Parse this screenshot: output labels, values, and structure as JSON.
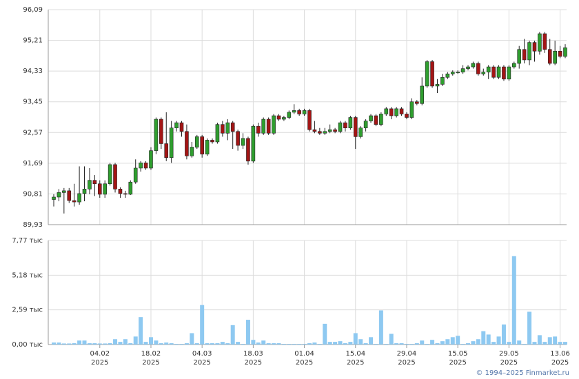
{
  "chart_data": [
    {
      "type": "candlestick",
      "open": [
        90.65,
        90.72,
        90.85,
        90.9,
        90.62,
        90.58,
        90.82,
        90.95,
        91.2,
        91.1,
        90.8,
        91.1,
        91.65,
        90.95,
        90.82,
        90.8,
        91.15,
        91.55,
        91.7,
        91.55,
        92.05,
        92.95,
        92.25,
        91.85,
        92.7,
        92.85,
        92.6,
        91.9,
        92.15,
        92.45,
        91.95,
        92.35,
        92.3,
        92.8,
        92.55,
        92.85,
        92.6,
        92.2,
        92.4,
        91.75,
        92.75,
        92.55,
        92.95,
        92.55,
        93.05,
        92.95,
        93.0,
        93.15,
        93.2,
        93.1,
        93.2,
        92.65,
        92.6,
        92.55,
        92.6,
        92.65,
        92.6,
        92.85,
        92.7,
        93.0,
        92.45,
        92.7,
        92.9,
        93.05,
        92.8,
        93.1,
        93.25,
        93.05,
        93.25,
        93.1,
        93.0,
        93.45,
        93.4,
        93.9,
        94.6,
        93.9,
        93.95,
        94.15,
        94.25,
        94.3,
        94.3,
        94.4,
        94.45,
        94.55,
        94.25,
        94.3,
        94.45,
        94.15,
        94.45,
        94.1,
        94.45,
        94.55,
        94.95,
        94.65,
        95.15,
        94.9,
        95.4,
        94.95,
        94.55,
        94.9,
        94.75
      ],
      "high": [
        90.8,
        90.95,
        90.98,
        90.98,
        91.1,
        91.6,
        91.6,
        91.55,
        91.35,
        91.2,
        91.2,
        91.7,
        91.7,
        91.0,
        90.9,
        91.2,
        91.8,
        91.75,
        91.75,
        92.15,
        93.0,
        93.0,
        93.15,
        92.9,
        92.9,
        92.9,
        92.8,
        92.3,
        92.5,
        92.5,
        92.4,
        92.4,
        92.85,
        92.9,
        92.95,
        92.9,
        92.65,
        92.55,
        92.45,
        92.8,
        92.85,
        93.0,
        93.0,
        93.1,
        93.1,
        93.05,
        93.2,
        93.38,
        93.25,
        93.25,
        93.25,
        92.9,
        92.7,
        92.7,
        92.8,
        92.7,
        92.9,
        92.9,
        93.05,
        93.05,
        92.75,
        92.95,
        93.1,
        93.1,
        93.15,
        93.3,
        93.3,
        93.3,
        93.3,
        93.15,
        93.55,
        93.5,
        94.15,
        94.65,
        94.65,
        94.1,
        94.25,
        94.3,
        94.35,
        94.35,
        94.5,
        94.5,
        94.6,
        94.6,
        94.4,
        94.5,
        94.5,
        94.5,
        94.5,
        94.5,
        94.6,
        95.05,
        95.25,
        95.2,
        95.2,
        95.45,
        95.45,
        95.25,
        95.2,
        95.05,
        95.1
      ],
      "low": [
        90.45,
        90.6,
        90.25,
        90.55,
        90.45,
        90.5,
        90.6,
        90.8,
        90.75,
        90.7,
        90.7,
        91.05,
        90.85,
        90.7,
        90.7,
        90.78,
        91.1,
        91.45,
        91.5,
        91.5,
        91.95,
        92.1,
        91.75,
        91.7,
        92.6,
        92.45,
        91.8,
        91.85,
        92.1,
        91.85,
        91.9,
        92.25,
        92.25,
        92.45,
        92.35,
        92.1,
        92.05,
        92.1,
        91.65,
        91.7,
        92.45,
        92.5,
        92.5,
        92.5,
        92.9,
        92.9,
        92.95,
        93.1,
        93.05,
        93.05,
        92.6,
        92.55,
        92.5,
        92.5,
        92.55,
        92.55,
        92.55,
        92.6,
        92.65,
        92.1,
        92.4,
        92.6,
        92.85,
        92.75,
        92.75,
        93.05,
        92.95,
        93.0,
        93.05,
        92.95,
        92.95,
        93.35,
        93.35,
        93.85,
        93.85,
        93.7,
        93.9,
        94.1,
        94.2,
        94.25,
        94.25,
        94.35,
        94.4,
        94.2,
        94.2,
        94.1,
        94.1,
        94.1,
        94.05,
        94.05,
        94.4,
        94.4,
        94.55,
        94.5,
        94.6,
        94.8,
        94.85,
        94.5,
        94.5,
        94.7,
        94.7
      ],
      "close": [
        90.72,
        90.85,
        90.9,
        90.62,
        90.58,
        90.82,
        90.95,
        91.2,
        91.1,
        90.8,
        91.1,
        91.65,
        90.95,
        90.82,
        90.8,
        91.15,
        91.55,
        91.7,
        91.55,
        92.05,
        92.95,
        92.25,
        91.85,
        92.7,
        92.85,
        92.6,
        91.9,
        92.15,
        92.45,
        91.95,
        92.35,
        92.3,
        92.8,
        92.55,
        92.85,
        92.6,
        92.2,
        92.4,
        91.75,
        92.75,
        92.55,
        92.95,
        92.55,
        93.05,
        92.95,
        93.0,
        93.15,
        93.2,
        93.1,
        93.2,
        92.65,
        92.6,
        92.55,
        92.6,
        92.65,
        92.6,
        92.85,
        92.7,
        93.0,
        92.45,
        92.7,
        92.9,
        93.05,
        92.8,
        93.1,
        93.25,
        93.05,
        93.25,
        93.1,
        93.0,
        93.45,
        93.4,
        93.9,
        94.6,
        93.9,
        93.95,
        94.15,
        94.25,
        94.3,
        94.3,
        94.4,
        94.45,
        94.55,
        94.25,
        94.3,
        94.45,
        94.15,
        94.45,
        94.1,
        94.45,
        94.55,
        94.95,
        94.65,
        95.15,
        94.9,
        95.4,
        94.95,
        94.55,
        94.9,
        94.75,
        95.0
      ],
      "up_color": "#2f9e2f",
      "down_color": "#a31515",
      "ylim": [
        89.93,
        96.09
      ],
      "yticks": [
        {
          "value": 89.93,
          "label": "89,93"
        },
        {
          "value": 90.81,
          "label": "90,81"
        },
        {
          "value": 91.69,
          "label": "91,69"
        },
        {
          "value": 92.57,
          "label": "92,57"
        },
        {
          "value": 93.45,
          "label": "93,45"
        },
        {
          "value": 94.33,
          "label": "94,33"
        },
        {
          "value": 95.21,
          "label": "95,21"
        },
        {
          "value": 96.09,
          "label": "96,09"
        }
      ],
      "grid": true
    },
    {
      "type": "bar",
      "categories": [
        null,
        null,
        null,
        null,
        null,
        null,
        null,
        null,
        null,
        "04.02",
        null,
        null,
        null,
        null,
        null,
        null,
        null,
        null,
        null,
        "18.02",
        null,
        null,
        null,
        null,
        null,
        null,
        null,
        null,
        null,
        "04.03",
        null,
        null,
        null,
        null,
        null,
        null,
        null,
        null,
        null,
        "18.03",
        null,
        null,
        null,
        null,
        null,
        null,
        null,
        null,
        null,
        "01.04",
        null,
        null,
        null,
        null,
        null,
        null,
        null,
        null,
        null,
        "15.04",
        null,
        null,
        null,
        null,
        null,
        null,
        null,
        null,
        null,
        "29.04",
        null,
        null,
        null,
        null,
        null,
        null,
        null,
        null,
        null,
        "15.05",
        null,
        null,
        null,
        null,
        null,
        null,
        null,
        null,
        null,
        "29.05",
        null,
        null,
        null,
        null,
        null,
        null,
        null,
        null,
        null,
        "13.06",
        null
      ],
      "x_year": "2025",
      "values": [
        0.15,
        0.15,
        0.08,
        0.08,
        0.1,
        0.3,
        0.3,
        0.1,
        0.1,
        0.08,
        0.08,
        0.1,
        0.4,
        0.2,
        0.4,
        0.1,
        0.6,
        2.05,
        0.2,
        0.55,
        0.3,
        0.1,
        0.15,
        0.1,
        0.05,
        0.05,
        0.1,
        0.85,
        0.1,
        2.95,
        0.1,
        0.1,
        0.1,
        0.2,
        0.1,
        1.45,
        0.2,
        0.05,
        1.85,
        0.35,
        0.15,
        0.3,
        0.1,
        0.1,
        0.1,
        0.05,
        0.05,
        0.05,
        0.05,
        0.05,
        0.1,
        0.15,
        0.05,
        1.55,
        0.2,
        0.2,
        0.25,
        0.1,
        0.2,
        0.85,
        0.4,
        0.1,
        0.55,
        0.05,
        2.55,
        0.05,
        0.8,
        0.1,
        0.1,
        0.05,
        0.05,
        0.1,
        0.3,
        0.05,
        0.35,
        0.1,
        0.25,
        0.4,
        0.55,
        0.65,
        0.05,
        0.1,
        0.25,
        0.4,
        1.0,
        0.75,
        0.2,
        0.6,
        1.5,
        0.2,
        6.6,
        0.3,
        0.05,
        2.45,
        0.2,
        0.7,
        0.2,
        0.55,
        0.6,
        0.2,
        0.2
      ],
      "color": "#8ec9f1",
      "ylim": [
        0,
        7.77
      ],
      "yticks": [
        {
          "value": 0,
          "label": "0,00 тыс"
        },
        {
          "value": 2.59,
          "label": "2,59 тыс"
        },
        {
          "value": 5.18,
          "label": "5,18 тыс"
        },
        {
          "value": 7.77,
          "label": "7,77 тыс"
        }
      ],
      "grid": true
    }
  ],
  "source": "© 1994–2025 Finmarket.ru"
}
